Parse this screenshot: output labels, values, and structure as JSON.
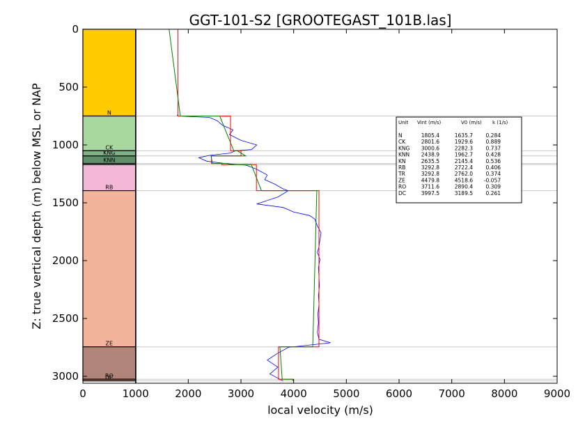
{
  "chart_data": {
    "type": "line",
    "title": "GGT-101-S2 [GROOTEGAST_101B.las]",
    "xlabel": "local velocity (m/s)",
    "ylabel": "Z: true vertical depth (m) below MSL or NAP",
    "xlim": [
      0,
      9000
    ],
    "ylim": [
      3060,
      0
    ],
    "y_inverted": true,
    "grid": false,
    "x_ticks": [
      "0",
      "1000",
      "2000",
      "3000",
      "4000",
      "5000",
      "6000",
      "7000",
      "8000",
      "9000"
    ],
    "y_ticks": [
      "0",
      "500",
      "1000",
      "1500",
      "2000",
      "2500",
      "3000"
    ],
    "strat_column": {
      "x_range": [
        0,
        1000
      ],
      "units": [
        {
          "name": "N",
          "top": 0,
          "base": 750,
          "color": "#ffcc00",
          "show_label": true
        },
        {
          "name": "CK",
          "top": 750,
          "base": 1050,
          "color": "#a8d8a0",
          "show_label": true
        },
        {
          "name": "KNG",
          "top": 1050,
          "base": 1095,
          "color": "#7fb086",
          "show_label": true
        },
        {
          "name": "KNN",
          "top": 1095,
          "base": 1160,
          "color": "#5e8f6a",
          "show_label": true
        },
        {
          "name": "KN",
          "top": 1160,
          "base": 1170,
          "color": "#ffffff",
          "show_label": false
        },
        {
          "name": "RB",
          "top": 1170,
          "base": 1395,
          "color": "#f2b8d6",
          "show_label": true
        },
        {
          "name": "ZE",
          "top": 1395,
          "base": 2745,
          "color": "#f2b59c",
          "show_label": true
        },
        {
          "name": "RO",
          "top": 2745,
          "base": 3025,
          "color": "#b08478",
          "show_label": true
        },
        {
          "name": "DC",
          "top": 3025,
          "base": 3040,
          "color": "#9e7466",
          "show_label": true
        }
      ]
    },
    "table": {
      "header": [
        "Unit",
        "Vint (m/s)",
        "V0 (m/s)",
        "k (1/s)"
      ],
      "rows": [
        [
          "N",
          "1805.4",
          "1635.7",
          "0.284"
        ],
        [
          "CK",
          "2801.6",
          "1929.6",
          "0.889"
        ],
        [
          "KNG",
          "3000.6",
          "2282.3",
          "0.737"
        ],
        [
          "KNN",
          "2438.9",
          "1962.7",
          "0.428"
        ],
        [
          "KN",
          "2635.5",
          "2145.4",
          "0.536"
        ],
        [
          "RB",
          "3292.8",
          "2722.4",
          "0.406"
        ],
        [
          "TR",
          "3292.8",
          "2762.0",
          "0.374"
        ],
        [
          "ZE",
          "4479.8",
          "4518.6",
          "-0.057"
        ],
        [
          "RO",
          "3711.6",
          "2890.4",
          "0.309"
        ],
        [
          "DC",
          "3997.5",
          "3189.5",
          "0.261"
        ]
      ]
    },
    "series": [
      {
        "color": "#0000ff",
        "style": "log",
        "points": [
          [
            1790,
            740
          ],
          [
            1800,
            750
          ],
          [
            2400,
            762
          ],
          [
            2550,
            790
          ],
          [
            2650,
            830
          ],
          [
            2850,
            870
          ],
          [
            2780,
            910
          ],
          [
            3000,
            960
          ],
          [
            3300,
            1000
          ],
          [
            3200,
            1040
          ],
          [
            2900,
            1050
          ],
          [
            2800,
            1070
          ],
          [
            2400,
            1090
          ],
          [
            2200,
            1110
          ],
          [
            2350,
            1140
          ],
          [
            2700,
            1160
          ],
          [
            3100,
            1175
          ],
          [
            3300,
            1210
          ],
          [
            3500,
            1260
          ],
          [
            3450,
            1300
          ],
          [
            3650,
            1340
          ],
          [
            3800,
            1380
          ],
          [
            3900,
            1395
          ],
          [
            3700,
            1450
          ],
          [
            3300,
            1510
          ],
          [
            3800,
            1540
          ],
          [
            4000,
            1580
          ],
          [
            4300,
            1610
          ],
          [
            4400,
            1640
          ],
          [
            4450,
            1700
          ],
          [
            4520,
            1760
          ],
          [
            4500,
            1820
          ],
          [
            4480,
            1880
          ],
          [
            4450,
            1930
          ],
          [
            4500,
            1990
          ],
          [
            4470,
            2060
          ],
          [
            4480,
            2140
          ],
          [
            4490,
            2220
          ],
          [
            4470,
            2300
          ],
          [
            4480,
            2380
          ],
          [
            4460,
            2460
          ],
          [
            4470,
            2540
          ],
          [
            4450,
            2620
          ],
          [
            4480,
            2680
          ],
          [
            4700,
            2710
          ],
          [
            3900,
            2750
          ],
          [
            3700,
            2800
          ],
          [
            3500,
            2860
          ],
          [
            3700,
            2920
          ],
          [
            3550,
            2980
          ],
          [
            3800,
            3040
          ]
        ]
      },
      {
        "color": "#ff0000",
        "style": "interval_velocity",
        "points": [
          [
            1805,
            0
          ],
          [
            1805,
            750
          ],
          [
            2802,
            750
          ],
          [
            2802,
            1050
          ],
          [
            3001,
            1050
          ],
          [
            3001,
            1095
          ],
          [
            2439,
            1095
          ],
          [
            2439,
            1160
          ],
          [
            2636,
            1160
          ],
          [
            2636,
            1170
          ],
          [
            3293,
            1170
          ],
          [
            3293,
            1395
          ],
          [
            4480,
            1395
          ],
          [
            4480,
            2745
          ],
          [
            3712,
            2745
          ],
          [
            3712,
            3025
          ],
          [
            3998,
            3025
          ],
          [
            3998,
            3040
          ]
        ]
      },
      {
        "color": "#008000",
        "style": "linear_trend",
        "points": [
          [
            1636,
            0
          ],
          [
            1849,
            750
          ],
          [
            2597,
            750
          ],
          [
            2864,
            1050
          ],
          [
            2928,
            1050
          ],
          [
            3089,
            1095
          ],
          [
            2432,
            1095
          ],
          [
            2460,
            1160
          ],
          [
            2765,
            1160
          ],
          [
            2775,
            1170
          ],
          [
            3197,
            1170
          ],
          [
            3388,
            1395
          ],
          [
            4439,
            1395
          ],
          [
            4362,
            2745
          ],
          [
            3739,
            2745
          ],
          [
            3782,
            3025
          ],
          [
            3978,
            3025
          ],
          [
            3982,
            3040
          ]
        ]
      }
    ]
  }
}
